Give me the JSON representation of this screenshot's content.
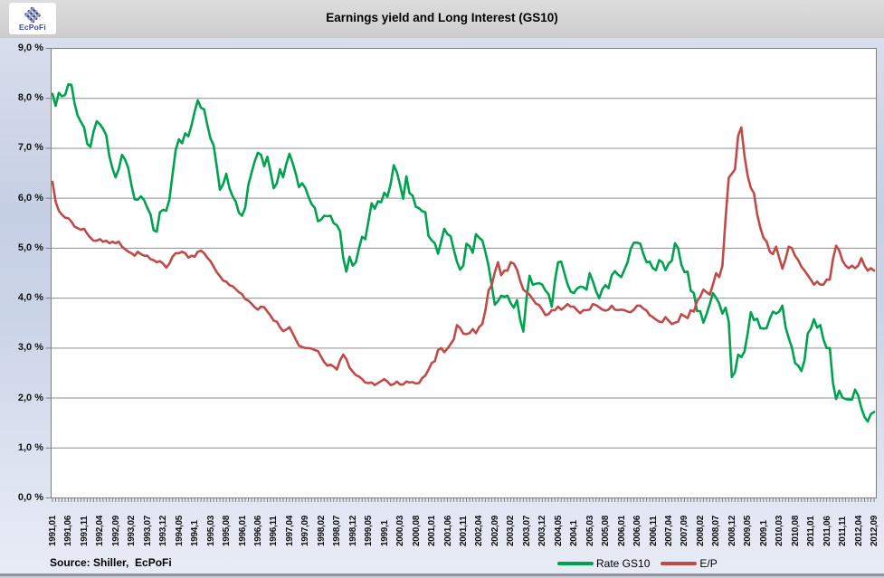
{
  "header": {
    "logo_text": "EcPoFi"
  },
  "footer": {
    "source": "Source: Shiller,  EcPoFi"
  },
  "colors": {
    "rate_gs10_line": "#00A24F",
    "ep_line": "#BE4B48",
    "gridline": "#8E8E8E",
    "plot_border": "#7F7F7F",
    "logo_navy": "#2B3B8F",
    "logo_gray": "#9AA6C0"
  },
  "chart_data": {
    "type": "line",
    "title": "Earnings yield and Long Interest (GS10)",
    "xlabel": "",
    "ylabel": "",
    "ylim": [
      0,
      9
    ],
    "grid": "horizontal",
    "legend_position": "bottom",
    "frequency": "monthly",
    "x_start": "1991,01",
    "x_end": "2012,09",
    "y_tick_labels": [
      "9,0 %",
      "8,0 %",
      "7,0 %",
      "6,0 %",
      "5,0 %",
      "4,0 %",
      "3,0 %",
      "2,0 %",
      "1,0 %",
      "0,0 %"
    ],
    "x_tick_labels": [
      "1991,01",
      "1991,06",
      "1991,11",
      "1992,04",
      "1992,09",
      "1993,02",
      "1993,07",
      "1993,12",
      "1994,05",
      "1994,1",
      "1995,03",
      "1995,08",
      "1996,01",
      "1996,06",
      "1996,11",
      "1997,04",
      "1997,09",
      "1998,02",
      "1998,07",
      "1998,12",
      "1999,05",
      "1999,1",
      "2000,03",
      "2000,08",
      "2001,01",
      "2001,06",
      "2001,11",
      "2002,04",
      "2002,09",
      "2003,02",
      "2003,07",
      "2003,12",
      "2004,05",
      "2004,1",
      "2005,03",
      "2005,08",
      "2006,01",
      "2006,06",
      "2006,11",
      "2007,04",
      "2007,09",
      "2008,02",
      "2008,07",
      "2008,12",
      "2009,05",
      "2009,1",
      "2010,03",
      "2010,08",
      "2011,01",
      "2011,06",
      "2011,11",
      "2012,04",
      "2012,09"
    ],
    "series": [
      {
        "name": "Rate GS10",
        "color": "#00A24F",
        "values": [
          8.09,
          7.85,
          8.11,
          8.04,
          8.07,
          8.28,
          8.27,
          7.9,
          7.65,
          7.53,
          7.42,
          7.09,
          7.03,
          7.34,
          7.54,
          7.48,
          7.39,
          7.26,
          6.84,
          6.59,
          6.42,
          6.59,
          6.87,
          6.77,
          6.6,
          6.26,
          5.98,
          5.97,
          6.04,
          5.96,
          5.81,
          5.68,
          5.36,
          5.33,
          5.72,
          5.77,
          5.75,
          5.97,
          6.48,
          6.97,
          7.18,
          7.1,
          7.3,
          7.24,
          7.46,
          7.74,
          7.96,
          7.81,
          7.78,
          7.47,
          7.2,
          7.06,
          6.63,
          6.17,
          6.28,
          6.49,
          6.2,
          6.04,
          5.93,
          5.71,
          5.65,
          5.81,
          6.27,
          6.51,
          6.74,
          6.91,
          6.87,
          6.64,
          6.83,
          6.53,
          6.2,
          6.3,
          6.58,
          6.42,
          6.69,
          6.89,
          6.71,
          6.49,
          6.22,
          6.3,
          6.21,
          6.03,
          5.88,
          5.81,
          5.54,
          5.57,
          5.65,
          5.64,
          5.65,
          5.5,
          5.46,
          5.34,
          4.81,
          4.53,
          4.83,
          4.65,
          4.72,
          5.0,
          5.23,
          5.18,
          5.54,
          5.9,
          5.79,
          5.94,
          5.92,
          6.11,
          6.03,
          6.28,
          6.66,
          6.52,
          6.26,
          5.99,
          6.44,
          6.1,
          6.05,
          5.83,
          5.8,
          5.74,
          5.72,
          5.24,
          5.16,
          5.1,
          4.89,
          5.14,
          5.39,
          5.28,
          5.24,
          4.97,
          4.73,
          4.57,
          4.65,
          5.09,
          5.04,
          4.91,
          5.28,
          5.21,
          5.16,
          4.93,
          4.65,
          4.26,
          3.87,
          3.94,
          4.05,
          4.03,
          4.05,
          3.9,
          3.81,
          3.96,
          3.57,
          3.33,
          3.98,
          4.45,
          4.27,
          4.29,
          4.3,
          4.27,
          4.15,
          4.08,
          3.83,
          4.35,
          4.72,
          4.73,
          4.5,
          4.28,
          4.13,
          4.1,
          4.19,
          4.23,
          4.22,
          4.17,
          4.5,
          4.34,
          4.14,
          4.0,
          4.18,
          4.26,
          4.2,
          4.46,
          4.54,
          4.47,
          4.42,
          4.57,
          4.72,
          4.99,
          5.11,
          5.11,
          5.09,
          4.88,
          4.72,
          4.73,
          4.6,
          4.56,
          4.76,
          4.72,
          4.56,
          4.69,
          4.75,
          5.1,
          5.0,
          4.67,
          4.52,
          4.53,
          4.15,
          4.1,
          3.74,
          3.74,
          3.51,
          3.68,
          3.88,
          4.1,
          4.01,
          3.89,
          3.69,
          3.81,
          3.53,
          2.42,
          2.52,
          2.87,
          2.82,
          2.93,
          3.29,
          3.72,
          3.56,
          3.59,
          3.4,
          3.39,
          3.4,
          3.59,
          3.73,
          3.69,
          3.73,
          3.85,
          3.42,
          3.2,
          3.01,
          2.7,
          2.65,
          2.54,
          2.76,
          3.29,
          3.39,
          3.58,
          3.41,
          3.46,
          3.17,
          3.0,
          3.0,
          2.3,
          1.98,
          2.15,
          2.01,
          1.98,
          1.97,
          1.97,
          2.17,
          2.05,
          1.8,
          1.62,
          1.53,
          1.68,
          1.72
        ]
      },
      {
        "name": "E/P",
        "color": "#BE4B48",
        "values": [
          6.33,
          5.93,
          5.75,
          5.67,
          5.61,
          5.6,
          5.53,
          5.43,
          5.4,
          5.37,
          5.39,
          5.29,
          5.21,
          5.15,
          5.15,
          5.18,
          5.13,
          5.15,
          5.1,
          5.13,
          5.1,
          5.13,
          5.03,
          4.98,
          4.93,
          4.9,
          4.85,
          4.93,
          4.88,
          4.85,
          4.85,
          4.78,
          4.76,
          4.72,
          4.74,
          4.69,
          4.61,
          4.69,
          4.83,
          4.9,
          4.9,
          4.93,
          4.9,
          4.81,
          4.85,
          4.83,
          4.93,
          4.95,
          4.9,
          4.81,
          4.74,
          4.63,
          4.52,
          4.44,
          4.35,
          4.33,
          4.26,
          4.24,
          4.18,
          4.12,
          4.08,
          3.98,
          3.95,
          3.89,
          3.82,
          3.77,
          3.83,
          3.82,
          3.73,
          3.65,
          3.55,
          3.53,
          3.42,
          3.34,
          3.37,
          3.42,
          3.3,
          3.17,
          3.05,
          3.02,
          3.0,
          3.0,
          2.99,
          2.96,
          2.94,
          2.83,
          2.72,
          2.65,
          2.67,
          2.63,
          2.57,
          2.75,
          2.87,
          2.78,
          2.61,
          2.53,
          2.46,
          2.43,
          2.38,
          2.31,
          2.3,
          2.31,
          2.26,
          2.3,
          2.34,
          2.38,
          2.33,
          2.26,
          2.28,
          2.33,
          2.27,
          2.27,
          2.33,
          2.31,
          2.32,
          2.29,
          2.3,
          2.4,
          2.45,
          2.57,
          2.7,
          2.74,
          2.96,
          3.0,
          2.92,
          2.99,
          3.08,
          3.17,
          3.46,
          3.4,
          3.29,
          3.28,
          3.3,
          3.38,
          3.3,
          3.42,
          3.48,
          3.75,
          4.15,
          4.26,
          4.52,
          4.72,
          4.46,
          4.55,
          4.55,
          4.72,
          4.69,
          4.57,
          4.35,
          4.17,
          4.12,
          4.07,
          3.98,
          3.89,
          3.86,
          3.77,
          3.66,
          3.68,
          3.76,
          3.76,
          3.83,
          3.77,
          3.82,
          3.88,
          3.83,
          3.83,
          3.76,
          3.7,
          3.76,
          3.76,
          3.77,
          3.88,
          3.86,
          3.82,
          3.77,
          3.75,
          3.77,
          3.85,
          3.77,
          3.76,
          3.77,
          3.76,
          3.73,
          3.72,
          3.77,
          3.85,
          3.85,
          3.79,
          3.75,
          3.66,
          3.62,
          3.57,
          3.53,
          3.52,
          3.62,
          3.55,
          3.48,
          3.51,
          3.53,
          3.68,
          3.64,
          3.6,
          3.76,
          3.73,
          3.94,
          4.03,
          4.17,
          4.12,
          4.07,
          4.27,
          4.5,
          4.42,
          4.65,
          5.59,
          6.41,
          6.49,
          6.58,
          7.25,
          7.42,
          6.85,
          6.45,
          6.21,
          6.1,
          5.68,
          5.41,
          5.21,
          5.13,
          4.93,
          4.88,
          5.03,
          4.81,
          4.59,
          4.78,
          5.03,
          5.0,
          4.85,
          4.76,
          4.63,
          4.55,
          4.46,
          4.37,
          4.27,
          4.33,
          4.27,
          4.27,
          4.37,
          4.37,
          4.78,
          5.05,
          4.95,
          4.75,
          4.65,
          4.6,
          4.65,
          4.6,
          4.65,
          4.8,
          4.65,
          4.55,
          4.6,
          4.55
        ]
      }
    ]
  }
}
